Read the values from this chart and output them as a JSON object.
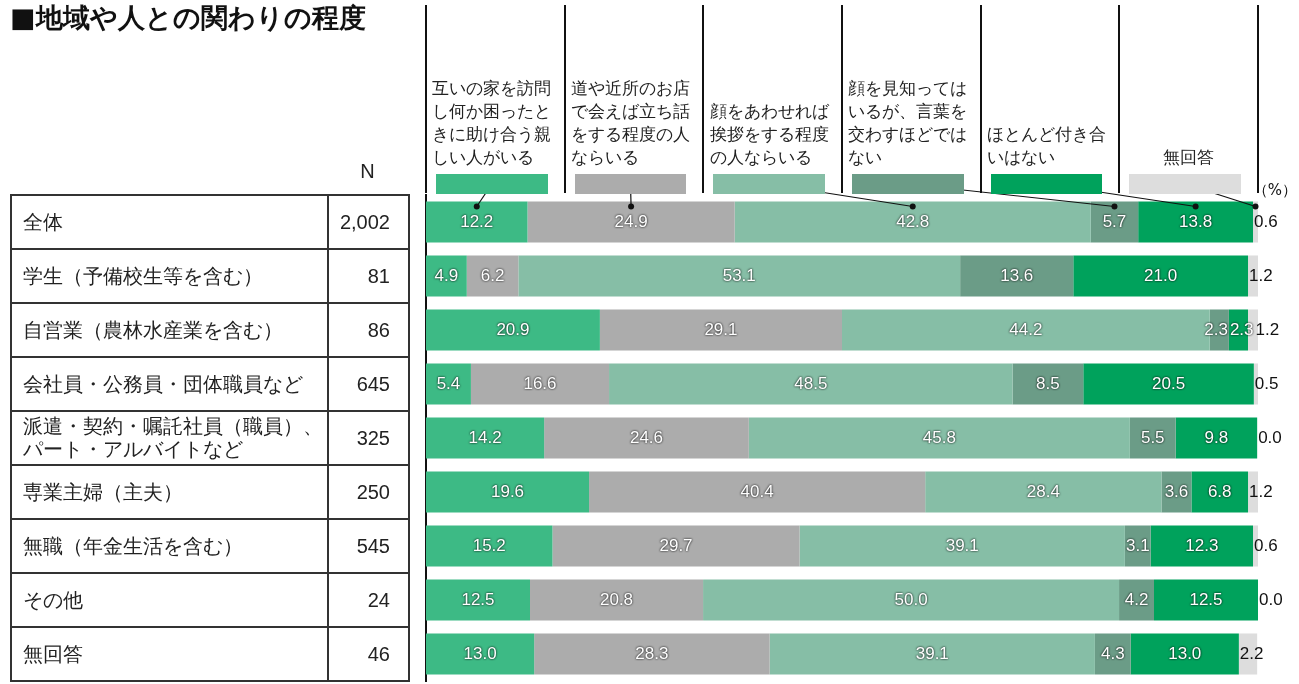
{
  "chart_data": {
    "type": "bar",
    "orientation": "horizontal",
    "stacked": true,
    "title": "■地域や人との関わりの程度",
    "xlabel": "（%）",
    "legend": "top",
    "tick_labels": "y",
    "xlim": [
      0,
      100
    ],
    "categories": [
      "全体",
      "学生（予備校生等を含む）",
      "自営業（農林水産業を含む）",
      "会社員・公務員・団体職員など",
      "派遣・契約・嘱託社員（職員）、パート・アルバイトなど",
      "専業主婦（主夫）",
      "無職（年金生活を含む）",
      "その他",
      "無回答"
    ],
    "series": [
      {
        "name": "互いの家を訪問し何か困ったときに助け合う親しい人がいる",
        "color": "#3dba85",
        "values": [
          12.2,
          4.9,
          20.9,
          5.4,
          14.2,
          19.6,
          15.2,
          12.5,
          13.0
        ],
        "value_labels": [
          "12.2",
          "4.9",
          "20.9",
          "5.4",
          "14.2",
          "19.6",
          "15.2",
          "12.5",
          "13.0"
        ]
      },
      {
        "name": "道や近所のお店で会えば立ち話をする程度の人ならいる",
        "color": "#acacac",
        "values": [
          24.9,
          6.2,
          29.1,
          16.6,
          24.6,
          40.4,
          29.7,
          20.8,
          28.3
        ],
        "value_labels": [
          "24.9",
          "6.2",
          "29.1",
          "16.6",
          "24.6",
          "40.4",
          "29.7",
          "20.8",
          "28.3"
        ]
      },
      {
        "name": "顔をあわせれば挨拶をする程度の人ならいる",
        "color": "#86bea6",
        "values": [
          42.8,
          53.1,
          44.2,
          48.5,
          45.8,
          28.4,
          39.1,
          50.0,
          39.1
        ],
        "value_labels": [
          "42.8",
          "53.1",
          "44.2",
          "48.5",
          "45.8",
          "28.4",
          "39.1",
          "50.0",
          "39.1"
        ]
      },
      {
        "name": "顔を見知ってはいるが、言葉を交わすほどではない",
        "color": "#6b9c87",
        "values": [
          5.7,
          13.6,
          2.3,
          8.5,
          5.5,
          3.6,
          3.1,
          4.2,
          4.3
        ],
        "value_labels": [
          "5.7",
          "13.6",
          "2.3",
          "8.5",
          "5.5",
          "3.6",
          "3.1",
          "4.2",
          "4.3"
        ]
      },
      {
        "name": "ほとんど付き合いはない",
        "color": "#00a25c",
        "values": [
          13.8,
          21.0,
          2.3,
          20.5,
          9.8,
          6.8,
          12.3,
          12.5,
          13.0
        ],
        "value_labels": [
          "13.8",
          "21.0",
          "2.3",
          "20.5",
          "9.8",
          "6.8",
          "12.3",
          "12.5",
          "13.0"
        ]
      },
      {
        "name": "無回答",
        "color": "#dddddd",
        "values": [
          0.6,
          1.2,
          1.2,
          0.5,
          0.0,
          1.2,
          0.6,
          0.0,
          2.2
        ],
        "value_labels": [
          "0.6",
          "1.2",
          "1.2",
          "0.5",
          "0.0",
          "1.2",
          "0.6",
          "0.0",
          "2.2"
        ]
      }
    ],
    "annotations": [
      "N",
      "2,002",
      "81",
      "86",
      "645",
      "325",
      "250",
      "545",
      "24",
      "46"
    ]
  }
}
